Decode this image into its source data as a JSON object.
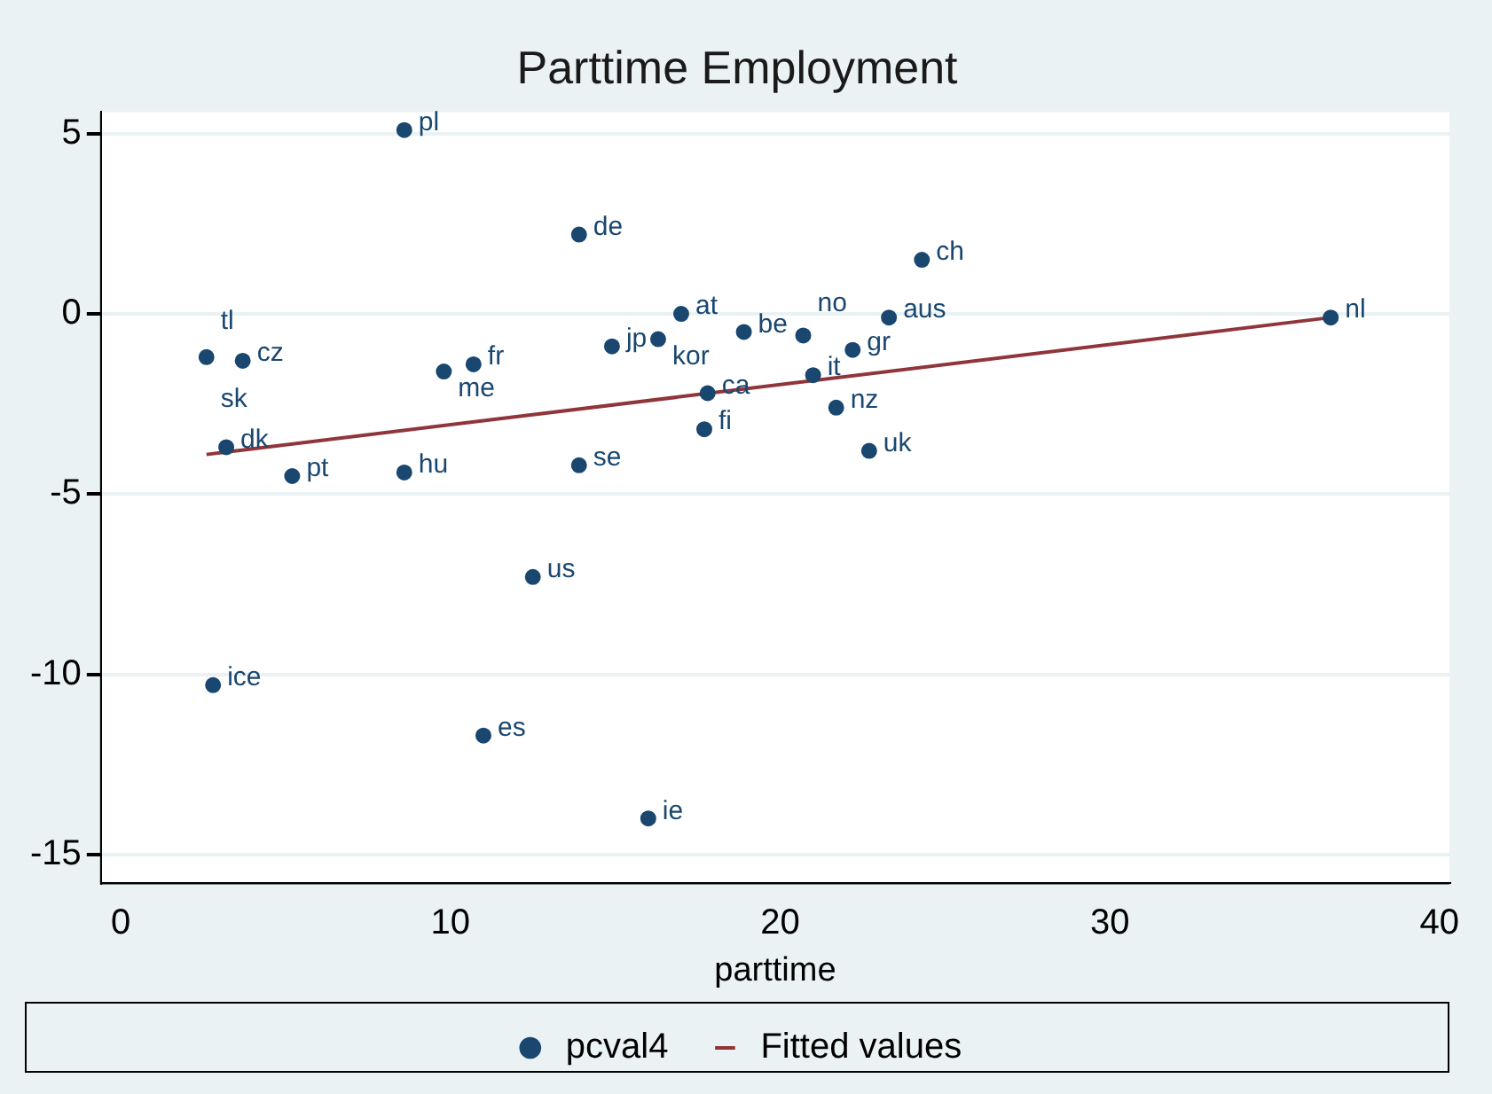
{
  "chart_data": {
    "type": "scatter",
    "title": "Parttime Employment",
    "xlabel": "parttime",
    "xlim": [
      -0.6,
      40.3
    ],
    "xticks": [
      0,
      10,
      20,
      30,
      40
    ],
    "ylim": [
      -15.8,
      5.6
    ],
    "yticks": [
      -15,
      -10,
      -5,
      0,
      5
    ],
    "grid": "y",
    "legend": "bottom",
    "marker": "circle",
    "series": [
      {
        "name": "pcval4",
        "type": "scatter",
        "color": "#1a476f",
        "x": [
          8.6,
          13.9,
          24.3,
          17.0,
          23.3,
          36.7,
          14.9,
          16.3,
          18.9,
          20.7,
          22.2,
          21.0,
          17.8,
          21.7,
          17.7,
          22.7,
          13.9,
          2.6,
          3.7,
          9.8,
          10.7,
          3.2,
          5.2,
          8.6,
          12.5,
          2.8,
          11.0,
          16.0
        ],
        "values": [
          5.1,
          2.2,
          1.5,
          0.0,
          -0.1,
          -0.1,
          -0.9,
          -0.7,
          -0.5,
          -0.6,
          -1.0,
          -1.7,
          -2.2,
          -2.6,
          -3.2,
          -3.8,
          -4.2,
          -1.2,
          -1.3,
          -1.6,
          -1.4,
          -3.7,
          -4.5,
          -4.4,
          -7.3,
          -10.3,
          -11.7,
          -14.0
        ]
      },
      {
        "name": "Fitted values",
        "type": "line",
        "color": "#90353b",
        "marker": "none",
        "x": [
          2.6,
          36.7
        ],
        "values": [
          -3.9,
          -0.1
        ]
      }
    ],
    "annotations": [
      {
        "text": "pl",
        "x": 8.6,
        "y": 5.1
      },
      {
        "text": "de",
        "x": 13.9,
        "y": 2.2
      },
      {
        "text": "ch",
        "x": 24.3,
        "y": 1.5
      },
      {
        "text": "at",
        "x": 17.0,
        "y": 0.0
      },
      {
        "text": "aus",
        "x": 23.3,
        "y": -0.1
      },
      {
        "text": "nl",
        "x": 36.7,
        "y": -0.1
      },
      {
        "text": "jp",
        "x": 14.9,
        "y": -0.9
      },
      {
        "text": "kor",
        "x": 16.3,
        "y": -0.7
      },
      {
        "text": "be",
        "x": 18.9,
        "y": -0.5
      },
      {
        "text": "no",
        "x": 20.7,
        "y": -0.6
      },
      {
        "text": "gr",
        "x": 22.2,
        "y": -1.0
      },
      {
        "text": "it",
        "x": 21.0,
        "y": -1.7
      },
      {
        "text": "ca",
        "x": 17.8,
        "y": -2.2
      },
      {
        "text": "nz",
        "x": 21.7,
        "y": -2.6
      },
      {
        "text": "fi",
        "x": 17.7,
        "y": -3.2
      },
      {
        "text": "uk",
        "x": 22.7,
        "y": -3.8
      },
      {
        "text": "se",
        "x": 13.9,
        "y": -4.2
      },
      {
        "text": "tl",
        "x": 2.6,
        "y": -1.1
      },
      {
        "text": "sk",
        "x": 2.6,
        "y": -1.2
      },
      {
        "text": "cz",
        "x": 3.7,
        "y": -1.3
      },
      {
        "text": "me",
        "x": 9.8,
        "y": -1.6
      },
      {
        "text": "fr",
        "x": 10.7,
        "y": -1.4
      },
      {
        "text": "dk",
        "x": 3.2,
        "y": -3.7
      },
      {
        "text": "pt",
        "x": 5.2,
        "y": -4.5
      },
      {
        "text": "hu",
        "x": 8.6,
        "y": -4.4
      },
      {
        "text": "us",
        "x": 12.5,
        "y": -7.3
      },
      {
        "text": "ice",
        "x": 2.8,
        "y": -10.3
      },
      {
        "text": "es",
        "x": 11.0,
        "y": -11.7
      },
      {
        "text": "ie",
        "x": 16.0,
        "y": -14.0
      }
    ]
  }
}
